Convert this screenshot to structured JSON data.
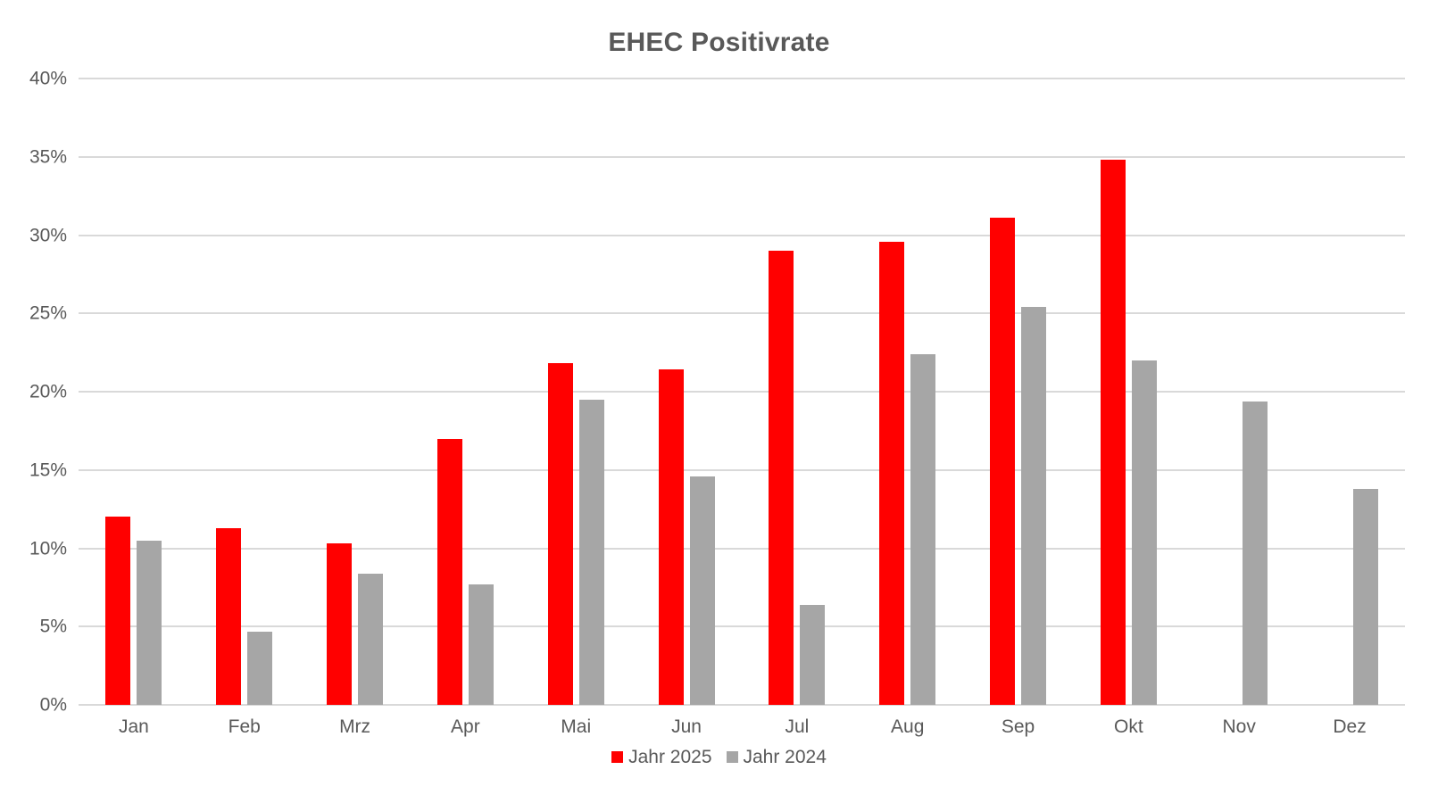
{
  "chart_data": {
    "type": "bar",
    "title": "EHEC Positivrate",
    "categories": [
      "Jan",
      "Feb",
      "Mrz",
      "Apr",
      "Mai",
      "Jun",
      "Jul",
      "Aug",
      "Sep",
      "Okt",
      "Nov",
      "Dez"
    ],
    "series": [
      {
        "name": "Jahr 2025",
        "color": "#ff0000",
        "values": [
          12.0,
          11.3,
          10.3,
          17.0,
          21.8,
          21.4,
          29.0,
          29.6,
          31.1,
          34.8,
          null,
          null
        ]
      },
      {
        "name": "Jahr 2024",
        "color": "#a6a6a6",
        "values": [
          10.5,
          4.7,
          8.4,
          7.7,
          19.5,
          14.6,
          6.4,
          22.4,
          25.4,
          22.0,
          19.4,
          13.8
        ]
      }
    ],
    "xlabel": "",
    "ylabel": "",
    "ylim": [
      0,
      40
    ],
    "ytick_step": 5,
    "ytick_suffix": "%",
    "grid": true,
    "legend_position": "bottom",
    "colors": {
      "gridline": "#d9d9d9",
      "axis_text": "#595959",
      "title_text": "#595959",
      "background": "#ffffff"
    }
  }
}
